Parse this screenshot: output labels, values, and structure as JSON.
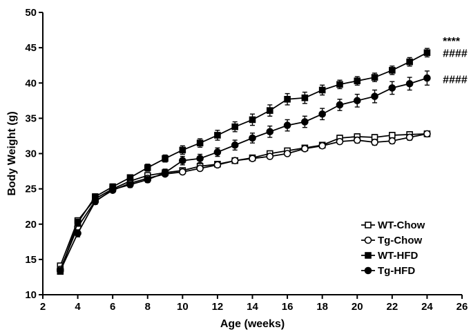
{
  "chart_data": {
    "type": "line",
    "xlabel": "Age (weeks)",
    "ylabel": "Body Weight (g)",
    "xlim": [
      2,
      26
    ],
    "ylim": [
      10,
      50
    ],
    "xticks": [
      2,
      4,
      6,
      8,
      10,
      12,
      14,
      16,
      18,
      20,
      22,
      24,
      26
    ],
    "yticks": [
      10,
      15,
      20,
      25,
      30,
      35,
      40,
      45,
      50
    ],
    "grid": false,
    "legend_position": "bottom-right",
    "x": [
      3,
      4,
      5,
      6,
      7,
      8,
      9,
      10,
      11,
      12,
      13,
      14,
      15,
      16,
      17,
      18,
      19,
      20,
      21,
      22,
      23,
      24
    ],
    "series": [
      {
        "name": "WT-Chow",
        "marker": "square-open",
        "values": [
          14.1,
          20.5,
          23.6,
          25.0,
          26.1,
          26.9,
          27.3,
          27.6,
          28.2,
          28.5,
          29.0,
          29.4,
          30.0,
          30.4,
          30.8,
          31.2,
          32.2,
          32.4,
          32.3,
          32.6,
          32.7,
          32.8
        ],
        "errors": [
          0.3,
          0.4,
          0.4,
          0.3,
          0.3,
          0.3,
          0.3,
          0.3,
          0.3,
          0.3,
          0.3,
          0.3,
          0.3,
          0.3,
          0.3,
          0.3,
          0.4,
          0.4,
          0.4,
          0.4,
          0.4,
          0.4
        ]
      },
      {
        "name": "Tg-Chow",
        "marker": "circle-open",
        "values": [
          13.6,
          19.6,
          23.3,
          24.8,
          25.8,
          26.5,
          27.1,
          27.4,
          27.9,
          28.4,
          29.0,
          29.3,
          29.6,
          30.0,
          30.7,
          31.1,
          31.7,
          31.9,
          31.6,
          31.8,
          32.3,
          32.8
        ],
        "errors": [
          0.3,
          0.5,
          0.4,
          0.3,
          0.3,
          0.3,
          0.3,
          0.3,
          0.3,
          0.3,
          0.3,
          0.3,
          0.3,
          0.3,
          0.3,
          0.3,
          0.3,
          0.4,
          0.4,
          0.4,
          0.4,
          0.4
        ]
      },
      {
        "name": "WT-HFD",
        "marker": "square-filled",
        "values": [
          13.3,
          20.2,
          23.9,
          25.3,
          26.6,
          28.0,
          29.3,
          30.5,
          31.5,
          32.6,
          33.8,
          34.8,
          36.1,
          37.7,
          37.9,
          39.0,
          39.8,
          40.3,
          40.8,
          41.8,
          43.0,
          44.3
        ],
        "errors": [
          0.3,
          0.5,
          0.4,
          0.4,
          0.4,
          0.5,
          0.5,
          0.6,
          0.6,
          0.7,
          0.7,
          0.8,
          0.8,
          0.8,
          0.8,
          0.7,
          0.6,
          0.6,
          0.6,
          0.6,
          0.6,
          0.6
        ]
      },
      {
        "name": "Tg-HFD",
        "marker": "circle-filled",
        "values": [
          13.4,
          18.7,
          23.2,
          24.9,
          25.6,
          26.3,
          27.3,
          29.0,
          29.3,
          30.2,
          31.2,
          32.2,
          33.1,
          34.0,
          34.5,
          35.6,
          36.9,
          37.5,
          38.1,
          39.3,
          39.9,
          40.7
        ],
        "errors": [
          0.3,
          0.5,
          0.4,
          0.4,
          0.4,
          0.4,
          0.5,
          0.6,
          0.6,
          0.6,
          0.7,
          0.7,
          0.8,
          0.8,
          0.8,
          0.8,
          0.8,
          0.9,
          0.9,
          0.9,
          0.9,
          1.0
        ]
      }
    ],
    "annotations": [
      {
        "text": "****",
        "x": 24.9,
        "y": 45.4
      },
      {
        "text": "####",
        "x": 24.9,
        "y": 43.7
      },
      {
        "text": "####",
        "x": 24.9,
        "y": 40.0
      }
    ]
  }
}
